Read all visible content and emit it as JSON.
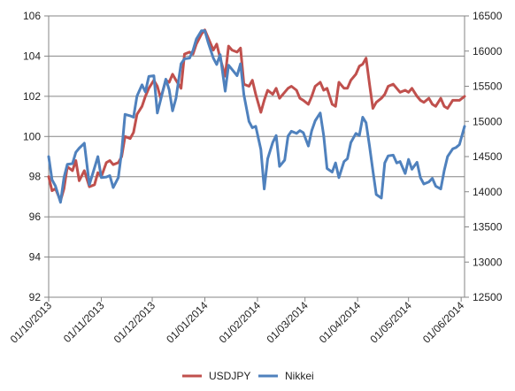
{
  "chart_data": {
    "type": "line",
    "dual_axis": true,
    "grid": true,
    "legend_position": "bottom",
    "x_ticks": [
      "01/10/2013",
      "01/11/2013",
      "01/12/2013",
      "01/01/2014",
      "01/02/2014",
      "01/03/2014",
      "01/04/2014",
      "01/05/2014",
      "01/06/2014"
    ],
    "x_range": [
      "01/10/2013",
      "03/06/2014"
    ],
    "y_left": {
      "range": [
        92,
        106
      ],
      "ticks": [
        "92",
        "94",
        "96",
        "98",
        "100",
        "102",
        "104",
        "106"
      ]
    },
    "y_right": {
      "range": [
        12500,
        16500
      ],
      "ticks": [
        "12500",
        "13000",
        "13500",
        "14000",
        "14500",
        "15000",
        "15500",
        "16000",
        "16500"
      ]
    },
    "series": [
      {
        "name": "USDJPY",
        "axis": "left",
        "color": "#c0504d",
        "points": [
          [
            "01/10/2013",
            98.0
          ],
          [
            "03/10/2013",
            97.3
          ],
          [
            "05/10/2013",
            97.4
          ],
          [
            "08/10/2013",
            96.8
          ],
          [
            "10/10/2013",
            97.4
          ],
          [
            "12/10/2013",
            98.5
          ],
          [
            "15/10/2013",
            98.3
          ],
          [
            "17/10/2013",
            98.8
          ],
          [
            "19/10/2013",
            97.8
          ],
          [
            "22/10/2013",
            98.3
          ],
          [
            "25/10/2013",
            97.5
          ],
          [
            "28/10/2013",
            97.6
          ],
          [
            "30/10/2013",
            98.2
          ],
          [
            "01/11/2013",
            98.0
          ],
          [
            "04/11/2013",
            98.7
          ],
          [
            "06/11/2013",
            98.8
          ],
          [
            "08/11/2013",
            98.6
          ],
          [
            "11/11/2013",
            98.7
          ],
          [
            "13/11/2013",
            99.0
          ],
          [
            "15/11/2013",
            100.0
          ],
          [
            "18/11/2013",
            99.9
          ],
          [
            "20/11/2013",
            100.2
          ],
          [
            "22/11/2013",
            101.1
          ],
          [
            "25/11/2013",
            101.5
          ],
          [
            "27/11/2013",
            102.0
          ],
          [
            "29/11/2013",
            102.4
          ],
          [
            "02/12/2013",
            102.8
          ],
          [
            "04/12/2013",
            102.5
          ],
          [
            "06/12/2013",
            101.9
          ],
          [
            "09/12/2013",
            102.8
          ],
          [
            "11/12/2013",
            102.7
          ],
          [
            "13/12/2013",
            103.1
          ],
          [
            "15/12/2013",
            102.8
          ],
          [
            "18/12/2013",
            102.4
          ],
          [
            "20/12/2013",
            104.1
          ],
          [
            "23/12/2013",
            104.2
          ],
          [
            "25/12/2013",
            104.1
          ],
          [
            "27/12/2013",
            104.6
          ],
          [
            "30/12/2013",
            105.1
          ],
          [
            "01/01/2014",
            105.3
          ],
          [
            "03/01/2014",
            104.9
          ],
          [
            "06/01/2014",
            104.3
          ],
          [
            "08/01/2014",
            104.6
          ],
          [
            "10/01/2014",
            103.9
          ],
          [
            "13/01/2014",
            103.0
          ],
          [
            "15/01/2014",
            104.5
          ],
          [
            "17/01/2014",
            104.3
          ],
          [
            "20/01/2014",
            104.2
          ],
          [
            "22/01/2014",
            104.4
          ],
          [
            "24/01/2014",
            102.6
          ],
          [
            "27/01/2014",
            102.5
          ],
          [
            "29/01/2014",
            102.8
          ],
          [
            "31/01/2014",
            102.1
          ],
          [
            "03/02/2014",
            101.2
          ],
          [
            "05/02/2014",
            101.8
          ],
          [
            "07/02/2014",
            102.3
          ],
          [
            "10/02/2014",
            102.1
          ],
          [
            "12/02/2014",
            102.4
          ],
          [
            "14/02/2014",
            101.9
          ],
          [
            "17/02/2014",
            102.2
          ],
          [
            "19/02/2014",
            102.4
          ],
          [
            "21/02/2014",
            102.5
          ],
          [
            "24/02/2014",
            102.3
          ],
          [
            "26/02/2014",
            101.9
          ],
          [
            "28/02/2014",
            101.8
          ],
          [
            "03/03/2014",
            101.6
          ],
          [
            "05/03/2014",
            102.0
          ],
          [
            "07/03/2014",
            102.5
          ],
          [
            "10/03/2014",
            102.7
          ],
          [
            "12/03/2014",
            102.3
          ],
          [
            "14/03/2014",
            102.4
          ],
          [
            "17/03/2014",
            101.6
          ],
          [
            "19/03/2014",
            101.5
          ],
          [
            "21/03/2014",
            102.7
          ],
          [
            "24/03/2014",
            102.4
          ],
          [
            "26/03/2014",
            102.4
          ],
          [
            "28/03/2014",
            102.8
          ],
          [
            "31/03/2014",
            103.1
          ],
          [
            "02/04/2014",
            103.5
          ],
          [
            "04/04/2014",
            103.6
          ],
          [
            "06/04/2014",
            103.9
          ],
          [
            "08/04/2014",
            102.6
          ],
          [
            "10/04/2014",
            101.4
          ],
          [
            "12/04/2014",
            101.7
          ],
          [
            "15/04/2014",
            101.9
          ],
          [
            "17/04/2014",
            102.1
          ],
          [
            "19/04/2014",
            102.5
          ],
          [
            "22/04/2014",
            102.6
          ],
          [
            "24/04/2014",
            102.4
          ],
          [
            "26/04/2014",
            102.2
          ],
          [
            "29/04/2014",
            102.3
          ],
          [
            "01/05/2014",
            102.2
          ],
          [
            "03/05/2014",
            102.4
          ],
          [
            "06/05/2014",
            102.0
          ],
          [
            "08/05/2014",
            101.8
          ],
          [
            "10/05/2014",
            101.7
          ],
          [
            "13/05/2014",
            101.9
          ],
          [
            "15/05/2014",
            101.6
          ],
          [
            "17/05/2014",
            101.5
          ],
          [
            "20/05/2014",
            101.9
          ],
          [
            "22/05/2014",
            101.5
          ],
          [
            "24/05/2014",
            101.4
          ],
          [
            "27/05/2014",
            101.8
          ],
          [
            "29/05/2014",
            101.8
          ],
          [
            "31/05/2014",
            101.8
          ],
          [
            "03/06/2014",
            102.0
          ]
        ]
      },
      {
        "name": "Nikkei",
        "axis": "right",
        "color": "#4f81bd",
        "points": [
          [
            "01/10/2013",
            14500
          ],
          [
            "03/10/2013",
            14170
          ],
          [
            "05/10/2013",
            14080
          ],
          [
            "08/10/2013",
            13850
          ],
          [
            "10/10/2013",
            14200
          ],
          [
            "12/10/2013",
            14390
          ],
          [
            "15/10/2013",
            14400
          ],
          [
            "17/10/2013",
            14560
          ],
          [
            "19/10/2013",
            14620
          ],
          [
            "22/10/2013",
            14690
          ],
          [
            "25/10/2013",
            14100
          ],
          [
            "28/10/2013",
            14340
          ],
          [
            "30/10/2013",
            14500
          ],
          [
            "01/11/2013",
            14200
          ],
          [
            "04/11/2013",
            14210
          ],
          [
            "06/11/2013",
            14230
          ],
          [
            "08/11/2013",
            14060
          ],
          [
            "11/11/2013",
            14200
          ],
          [
            "13/11/2013",
            14570
          ],
          [
            "15/11/2013",
            15100
          ],
          [
            "18/11/2013",
            15080
          ],
          [
            "20/11/2013",
            15060
          ],
          [
            "22/11/2013",
            15360
          ],
          [
            "25/11/2013",
            15520
          ],
          [
            "27/11/2013",
            15420
          ],
          [
            "29/11/2013",
            15640
          ],
          [
            "02/12/2013",
            15650
          ],
          [
            "04/12/2013",
            15120
          ],
          [
            "06/12/2013",
            15310
          ],
          [
            "09/12/2013",
            15600
          ],
          [
            "11/12/2013",
            15450
          ],
          [
            "13/12/2013",
            15150
          ],
          [
            "15/12/2013",
            15330
          ],
          [
            "18/12/2013",
            15820
          ],
          [
            "20/12/2013",
            15890
          ],
          [
            "23/12/2013",
            15900
          ],
          [
            "25/12/2013",
            16010
          ],
          [
            "27/12/2013",
            16170
          ],
          [
            "30/12/2013",
            16290
          ],
          [
            "01/01/2014",
            16290
          ],
          [
            "03/01/2014",
            16120
          ],
          [
            "06/01/2014",
            15900
          ],
          [
            "08/01/2014",
            15810
          ],
          [
            "10/01/2014",
            15950
          ],
          [
            "13/01/2014",
            15430
          ],
          [
            "15/01/2014",
            15800
          ],
          [
            "17/01/2014",
            15740
          ],
          [
            "20/01/2014",
            15650
          ],
          [
            "22/01/2014",
            15820
          ],
          [
            "24/01/2014",
            15380
          ],
          [
            "27/01/2014",
            15000
          ],
          [
            "29/01/2014",
            14910
          ],
          [
            "31/01/2014",
            14930
          ],
          [
            "03/02/2014",
            14600
          ],
          [
            "05/02/2014",
            14040
          ],
          [
            "07/02/2014",
            14470
          ],
          [
            "10/02/2014",
            14700
          ],
          [
            "12/02/2014",
            14800
          ],
          [
            "14/02/2014",
            14360
          ],
          [
            "17/02/2014",
            14450
          ],
          [
            "19/02/2014",
            14790
          ],
          [
            "21/02/2014",
            14860
          ],
          [
            "24/02/2014",
            14830
          ],
          [
            "26/02/2014",
            14870
          ],
          [
            "28/02/2014",
            14840
          ],
          [
            "03/03/2014",
            14650
          ],
          [
            "05/03/2014",
            14870
          ],
          [
            "07/03/2014",
            15010
          ],
          [
            "10/03/2014",
            15120
          ],
          [
            "12/03/2014",
            14800
          ],
          [
            "14/03/2014",
            14330
          ],
          [
            "17/03/2014",
            14280
          ],
          [
            "19/03/2014",
            14410
          ],
          [
            "21/03/2014",
            14200
          ],
          [
            "24/03/2014",
            14430
          ],
          [
            "26/03/2014",
            14470
          ],
          [
            "28/03/2014",
            14700
          ],
          [
            "31/03/2014",
            14830
          ],
          [
            "02/04/2014",
            14800
          ],
          [
            "04/04/2014",
            15060
          ],
          [
            "06/04/2014",
            14980
          ],
          [
            "08/04/2014",
            14650
          ],
          [
            "10/04/2014",
            14300
          ],
          [
            "12/04/2014",
            13960
          ],
          [
            "15/04/2014",
            13910
          ],
          [
            "17/04/2014",
            14410
          ],
          [
            "19/04/2014",
            14510
          ],
          [
            "22/04/2014",
            14520
          ],
          [
            "24/04/2014",
            14410
          ],
          [
            "26/04/2014",
            14430
          ],
          [
            "29/04/2014",
            14260
          ],
          [
            "01/05/2014",
            14460
          ],
          [
            "03/05/2014",
            14320
          ],
          [
            "06/05/2014",
            14420
          ],
          [
            "08/05/2014",
            14200
          ],
          [
            "10/05/2014",
            14110
          ],
          [
            "13/05/2014",
            14140
          ],
          [
            "15/05/2014",
            14190
          ],
          [
            "17/05/2014",
            14080
          ],
          [
            "20/05/2014",
            14040
          ],
          [
            "22/05/2014",
            14300
          ],
          [
            "24/05/2014",
            14500
          ],
          [
            "27/05/2014",
            14610
          ],
          [
            "29/05/2014",
            14630
          ],
          [
            "31/05/2014",
            14670
          ],
          [
            "03/06/2014",
            14930
          ]
        ]
      }
    ]
  }
}
